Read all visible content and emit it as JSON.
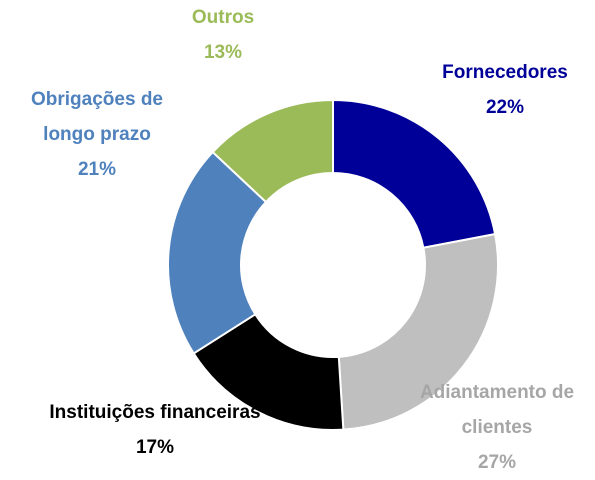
{
  "chart_data": {
    "type": "donut",
    "categories": [
      "Fornecedores",
      "Adiantamento de clientes",
      "Instituições financeiras",
      "Obrigações de longo prazo",
      "Outros"
    ],
    "values": [
      22,
      27,
      17,
      21,
      13
    ],
    "value_labels": [
      "22%",
      "27%",
      "17%",
      "21%",
      "13%"
    ],
    "colors": [
      "#000099",
      "#bfbfbf",
      "#000000",
      "#4f81bd",
      "#9bbb59"
    ],
    "label_colors": [
      "#000099",
      "#a6a6a6",
      "#000000",
      "#4f81bd",
      "#9bbb59"
    ]
  }
}
